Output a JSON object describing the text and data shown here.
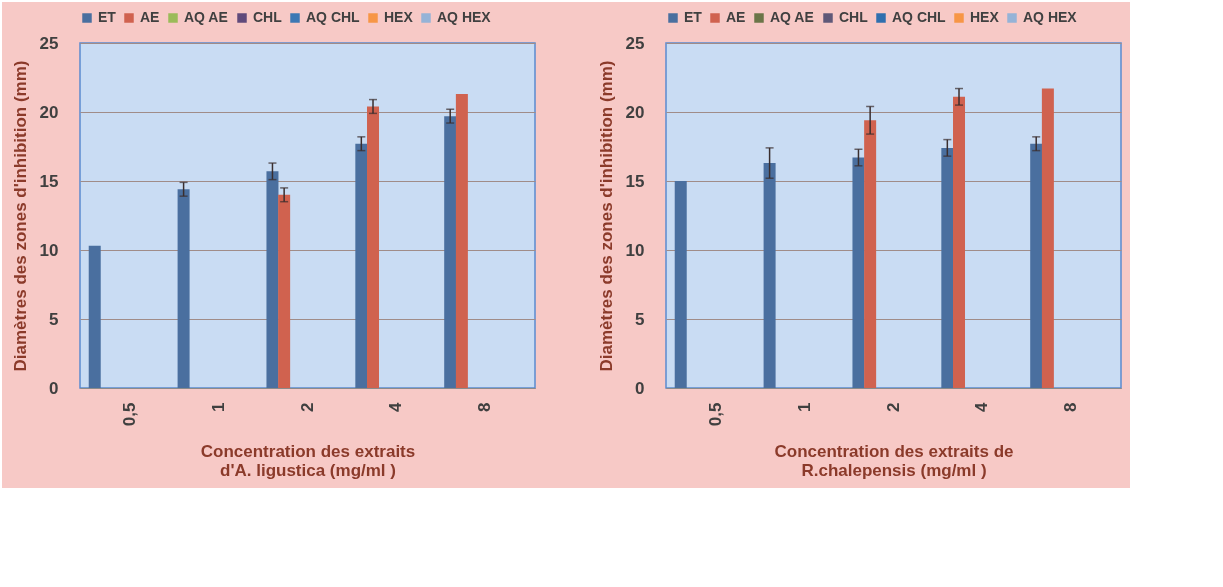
{
  "chart_data": [
    {
      "type": "bar",
      "categories": [
        "0,5",
        "1",
        "2",
        "4",
        "8"
      ],
      "xlabel": "Concentration des extraits\nd'A. ligustica (mg/ml )",
      "ylabel": "Diamètres des zones d'inhibition (mm)",
      "ylim": [
        0,
        25
      ],
      "yticks": [
        0,
        5,
        10,
        15,
        20,
        25
      ],
      "grid": "y",
      "legend": "top",
      "series": [
        {
          "name": "ET",
          "color": "#4a6f9f",
          "values": [
            10.3,
            14.4,
            15.7,
            17.7,
            19.7
          ],
          "errors": [
            null,
            0.5,
            0.6,
            0.5,
            0.5
          ]
        },
        {
          "name": "AE",
          "color": "#d0624f",
          "values": [
            null,
            null,
            14.0,
            20.4,
            21.3
          ],
          "errors": [
            null,
            null,
            0.5,
            0.5,
            null
          ]
        },
        {
          "name": "AQ AE",
          "color": "#9bbb59",
          "values": [
            null,
            null,
            null,
            null,
            null
          ]
        },
        {
          "name": "CHL",
          "color": "#604a7b",
          "values": [
            null,
            null,
            null,
            null,
            null
          ]
        },
        {
          "name": "AQ CHL",
          "color": "#3d78b4",
          "values": [
            null,
            null,
            null,
            null,
            null
          ]
        },
        {
          "name": "HEX",
          "color": "#f79646",
          "values": [
            null,
            null,
            null,
            null,
            null
          ]
        },
        {
          "name": "AQ HEX",
          "color": "#95b3d7",
          "values": [
            null,
            null,
            null,
            null,
            null
          ]
        }
      ]
    },
    {
      "type": "bar",
      "categories": [
        "0,5",
        "1",
        "2",
        "4",
        "8"
      ],
      "xlabel": "Concentration des extraits de\nR.chalepensis  (mg/ml )",
      "ylabel": "Diamètres des zones d'inhibition (mm)",
      "ylim": [
        0,
        25
      ],
      "yticks": [
        0,
        5,
        10,
        15,
        20,
        25
      ],
      "grid": "y",
      "legend": "top",
      "series": [
        {
          "name": "ET",
          "color": "#4a6f9f",
          "values": [
            15.0,
            16.3,
            16.7,
            17.4,
            17.7
          ],
          "errors": [
            null,
            1.1,
            0.6,
            0.6,
            0.5
          ]
        },
        {
          "name": "AE",
          "color": "#d0624f",
          "values": [
            null,
            null,
            19.4,
            21.1,
            21.7
          ],
          "errors": [
            null,
            null,
            1.0,
            0.6,
            null
          ]
        },
        {
          "name": "AQ AE",
          "color": "#6b7548",
          "values": [
            null,
            null,
            null,
            null,
            null
          ]
        },
        {
          "name": "CHL",
          "color": "#5f5878",
          "values": [
            null,
            null,
            null,
            null,
            null
          ]
        },
        {
          "name": "AQ CHL",
          "color": "#2f6fae",
          "values": [
            null,
            null,
            null,
            null,
            null
          ]
        },
        {
          "name": "HEX",
          "color": "#f79646",
          "values": [
            null,
            null,
            null,
            null,
            null
          ]
        },
        {
          "name": "AQ HEX",
          "color": "#95b3d7",
          "values": [
            null,
            null,
            null,
            null,
            null
          ]
        }
      ]
    }
  ]
}
